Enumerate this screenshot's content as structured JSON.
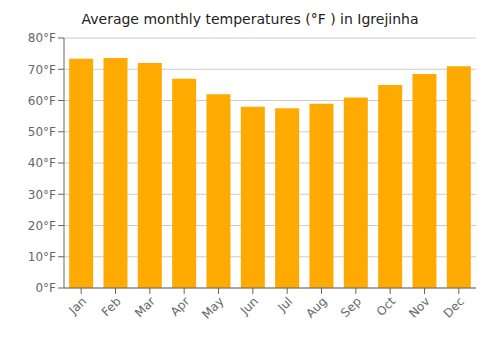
{
  "chart_data": {
    "type": "bar",
    "title": "Average monthly temperatures (°F ) in Igrejinha",
    "categories": [
      "Jan",
      "Feb",
      "Mar",
      "Apr",
      "May",
      "Jun",
      "Jul",
      "Aug",
      "Sep",
      "Oct",
      "Nov",
      "Dec"
    ],
    "values": [
      73.4,
      73.6,
      72.0,
      67.0,
      62.0,
      58.0,
      57.5,
      59.0,
      61.0,
      65.0,
      68.5,
      71.0
    ],
    "color": "#FFAA00",
    "ylim": [
      0,
      80
    ],
    "yticks": [
      {
        "value": 0,
        "label": "0°F"
      },
      {
        "value": 10,
        "label": "10°F"
      },
      {
        "value": 20,
        "label": "20°F"
      },
      {
        "value": 30,
        "label": "30°F"
      },
      {
        "value": 40,
        "label": "40°F"
      },
      {
        "value": 50,
        "label": "50°F"
      },
      {
        "value": 60,
        "label": "60°F"
      },
      {
        "value": 70,
        "label": "70°F"
      },
      {
        "value": 80,
        "label": "80°F"
      }
    ],
    "grid": true
  }
}
